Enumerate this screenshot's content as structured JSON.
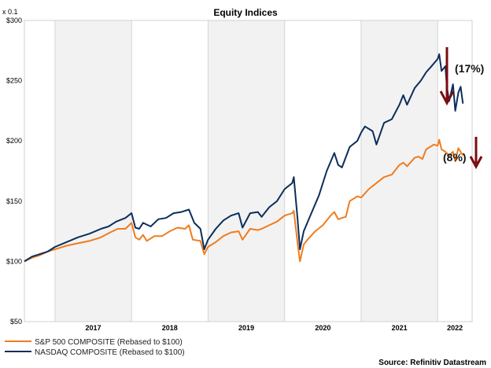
{
  "chart_data": {
    "type": "line",
    "title": "Equity Indices",
    "unit_label": "x 0.1",
    "y_ticks": [
      "$50",
      "$100",
      "$150",
      "$200",
      "$250",
      "$300"
    ],
    "ylim": [
      50,
      300
    ],
    "x_ticks": [
      "2017",
      "2018",
      "2019",
      "2020",
      "2021",
      "2022"
    ],
    "xlim": [
      2016.6,
      2022.45
    ],
    "shaded_years": [
      2017,
      2019,
      2021
    ],
    "series": [
      {
        "name": "S&P 500 COMPOSITE (Rebased to $100)",
        "color": "#f07c1e",
        "points": [
          [
            2016.6,
            100
          ],
          [
            2016.7,
            103
          ],
          [
            2016.8,
            105
          ],
          [
            2016.9,
            108
          ],
          [
            2017.0,
            110
          ],
          [
            2017.15,
            113
          ],
          [
            2017.3,
            115
          ],
          [
            2017.45,
            117
          ],
          [
            2017.6,
            120
          ],
          [
            2017.72,
            124
          ],
          [
            2017.82,
            127
          ],
          [
            2017.92,
            127
          ],
          [
            2018.0,
            132
          ],
          [
            2018.05,
            120
          ],
          [
            2018.1,
            118
          ],
          [
            2018.15,
            122
          ],
          [
            2018.2,
            117
          ],
          [
            2018.3,
            121
          ],
          [
            2018.4,
            121
          ],
          [
            2018.5,
            125
          ],
          [
            2018.6,
            128
          ],
          [
            2018.7,
            127
          ],
          [
            2018.75,
            130
          ],
          [
            2018.8,
            118
          ],
          [
            2018.9,
            117
          ],
          [
            2018.95,
            106
          ],
          [
            2019.0,
            112
          ],
          [
            2019.1,
            116
          ],
          [
            2019.2,
            121
          ],
          [
            2019.3,
            124
          ],
          [
            2019.4,
            125
          ],
          [
            2019.45,
            118
          ],
          [
            2019.55,
            127
          ],
          [
            2019.65,
            126
          ],
          [
            2019.7,
            127
          ],
          [
            2019.8,
            130
          ],
          [
            2019.9,
            133
          ],
          [
            2020.0,
            138
          ],
          [
            2020.1,
            140
          ],
          [
            2020.12,
            142
          ],
          [
            2020.17,
            115
          ],
          [
            2020.2,
            100
          ],
          [
            2020.25,
            114
          ],
          [
            2020.3,
            118
          ],
          [
            2020.4,
            125
          ],
          [
            2020.5,
            130
          ],
          [
            2020.6,
            138
          ],
          [
            2020.65,
            141
          ],
          [
            2020.7,
            135
          ],
          [
            2020.75,
            136
          ],
          [
            2020.8,
            137
          ],
          [
            2020.85,
            150
          ],
          [
            2020.95,
            154
          ],
          [
            2021.0,
            153
          ],
          [
            2021.1,
            160
          ],
          [
            2021.2,
            165
          ],
          [
            2021.3,
            170
          ],
          [
            2021.4,
            172
          ],
          [
            2021.5,
            180
          ],
          [
            2021.55,
            182
          ],
          [
            2021.6,
            179
          ],
          [
            2021.7,
            186
          ],
          [
            2021.75,
            187
          ],
          [
            2021.8,
            185
          ],
          [
            2021.85,
            193
          ],
          [
            2021.9,
            195
          ],
          [
            2021.95,
            197
          ],
          [
            2022.0,
            196
          ],
          [
            2022.02,
            201
          ],
          [
            2022.05,
            193
          ],
          [
            2022.1,
            191
          ],
          [
            2022.15,
            188
          ],
          [
            2022.2,
            191
          ],
          [
            2022.23,
            183
          ],
          [
            2022.27,
            194
          ],
          [
            2022.33,
            188
          ]
        ]
      },
      {
        "name": "NASDAQ COMPOSITE (Rebased to $100)",
        "color": "#0b2e5b",
        "points": [
          [
            2016.6,
            100
          ],
          [
            2016.7,
            104
          ],
          [
            2016.8,
            106
          ],
          [
            2016.9,
            108
          ],
          [
            2017.0,
            112
          ],
          [
            2017.15,
            116
          ],
          [
            2017.3,
            120
          ],
          [
            2017.45,
            123
          ],
          [
            2017.6,
            127
          ],
          [
            2017.7,
            129
          ],
          [
            2017.8,
            133
          ],
          [
            2017.92,
            136
          ],
          [
            2018.0,
            140
          ],
          [
            2018.05,
            128
          ],
          [
            2018.1,
            127
          ],
          [
            2018.15,
            132
          ],
          [
            2018.25,
            129
          ],
          [
            2018.35,
            135
          ],
          [
            2018.45,
            136
          ],
          [
            2018.55,
            140
          ],
          [
            2018.65,
            141
          ],
          [
            2018.75,
            143
          ],
          [
            2018.82,
            132
          ],
          [
            2018.9,
            127
          ],
          [
            2018.95,
            110
          ],
          [
            2019.0,
            118
          ],
          [
            2019.1,
            127
          ],
          [
            2019.2,
            134
          ],
          [
            2019.3,
            138
          ],
          [
            2019.4,
            140
          ],
          [
            2019.45,
            128
          ],
          [
            2019.55,
            140
          ],
          [
            2019.65,
            141
          ],
          [
            2019.7,
            137
          ],
          [
            2019.8,
            145
          ],
          [
            2019.9,
            150
          ],
          [
            2020.0,
            160
          ],
          [
            2020.1,
            165
          ],
          [
            2020.12,
            170
          ],
          [
            2020.17,
            135
          ],
          [
            2020.2,
            110
          ],
          [
            2020.25,
            125
          ],
          [
            2020.35,
            140
          ],
          [
            2020.45,
            155
          ],
          [
            2020.55,
            175
          ],
          [
            2020.65,
            190
          ],
          [
            2020.7,
            180
          ],
          [
            2020.75,
            178
          ],
          [
            2020.85,
            195
          ],
          [
            2020.95,
            200
          ],
          [
            2021.0,
            207
          ],
          [
            2021.05,
            212
          ],
          [
            2021.15,
            208
          ],
          [
            2021.2,
            197
          ],
          [
            2021.3,
            215
          ],
          [
            2021.4,
            218
          ],
          [
            2021.5,
            230
          ],
          [
            2021.55,
            238
          ],
          [
            2021.6,
            230
          ],
          [
            2021.7,
            244
          ],
          [
            2021.78,
            250
          ],
          [
            2021.85,
            257
          ],
          [
            2021.92,
            262
          ],
          [
            2022.0,
            268
          ],
          [
            2022.02,
            272
          ],
          [
            2022.05,
            258
          ],
          [
            2022.1,
            262
          ],
          [
            2022.12,
            245
          ],
          [
            2022.15,
            233
          ],
          [
            2022.2,
            247
          ],
          [
            2022.23,
            225
          ],
          [
            2022.27,
            240
          ],
          [
            2022.3,
            245
          ],
          [
            2022.33,
            231
          ]
        ]
      }
    ],
    "annotations": [
      {
        "text": "(17%)",
        "color": "#7a0c10"
      },
      {
        "text": "(8%)",
        "color": "#7a0c10"
      }
    ],
    "source": "Source: Refinitiv Datastream",
    "legend_position": "bottom-left",
    "grid": "vertical year lines, alternating shaded bands"
  }
}
